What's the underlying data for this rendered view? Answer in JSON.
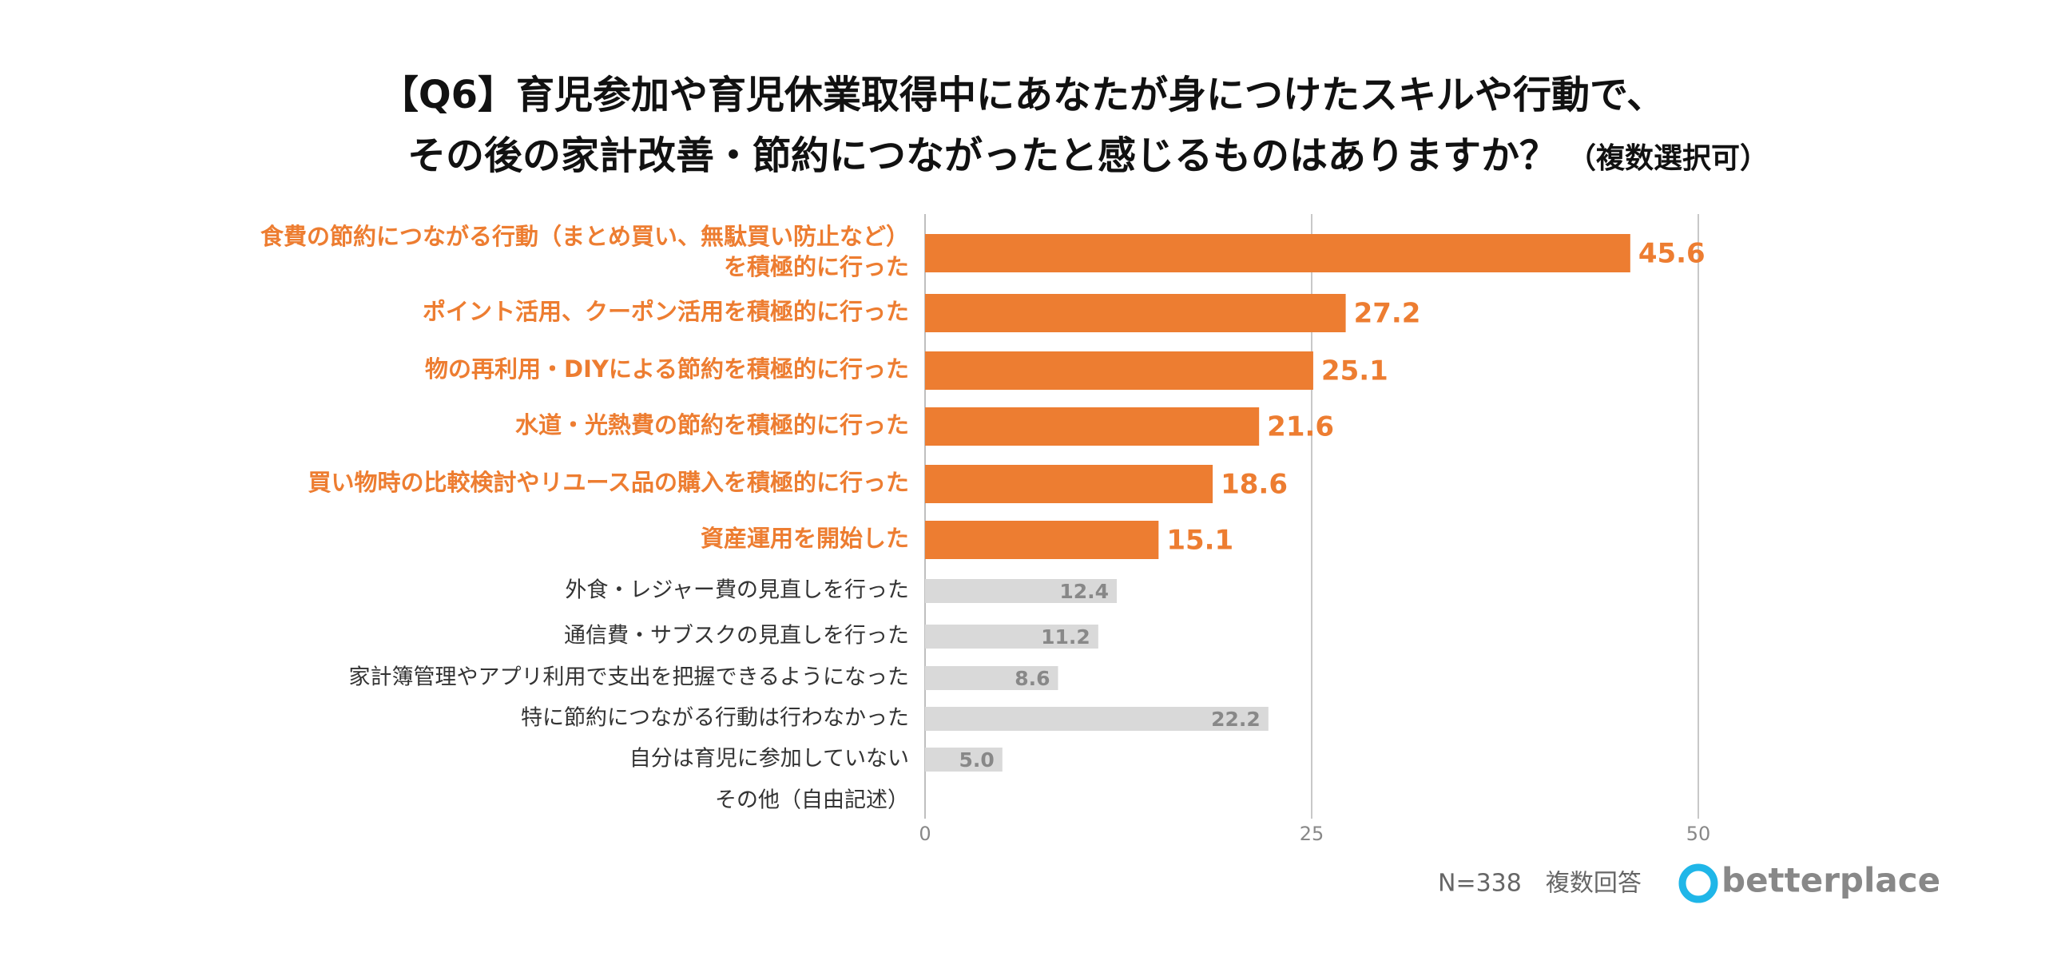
{
  "chart_data": {
    "type": "bar",
    "orientation": "horizontal",
    "title": "【Q6】育児参加や育児休業取得中にあなたが身につけたスキルや行動で、",
    "title_line2": "その後の家計改善・節約につながったと感じるものはありますか？",
    "title_note": "（複数選択可）",
    "categories": [
      "食費の節約につながる行動（まとめ買い、無駄買い防止など）\nを積極的に行った",
      "ポイント活用、クーポン活用を積極的に行った",
      "物の再利用・DIYによる節約を積極的に行った",
      "水道・光熱費の節約を積極的に行った",
      "買い物時の比較検討やリユース品の購入を積極的に行った",
      "資産運用を開始した",
      "外食・レジャー費の見直しを行った",
      "通信費・サブスクの見直しを行った",
      "家計簿管理やアプリ利用で支出を把握できるようになった",
      "特に節約につながる行動は行わなかった",
      "自分は育児に参加していない",
      "その他（自由記述）"
    ],
    "values": [
      45.6,
      27.2,
      25.1,
      21.6,
      18.6,
      15.1,
      12.4,
      11.2,
      8.6,
      22.2,
      5.0,
      null
    ],
    "value_labels": [
      "45.6",
      "27.2",
      "25.1",
      "21.6",
      "18.6",
      "15.1",
      "12.4",
      "11.2",
      "8.6",
      "22.2",
      "5.0",
      null
    ],
    "colors": [
      "#ED7D31",
      "#ED7D31",
      "#ED7D31",
      "#ED7D31",
      "#ED7D31",
      "#ED7D31",
      "#D9D9D9",
      "#D9D9D9",
      "#D9D9D9",
      "#D9D9D9",
      "#D9D9D9",
      "#D9D9D9"
    ],
    "xlim": [
      0,
      50
    ],
    "xticks": [
      0,
      25,
      50
    ],
    "grid": true,
    "footnote": "N=338　複数回答",
    "brand": "betterplace"
  }
}
